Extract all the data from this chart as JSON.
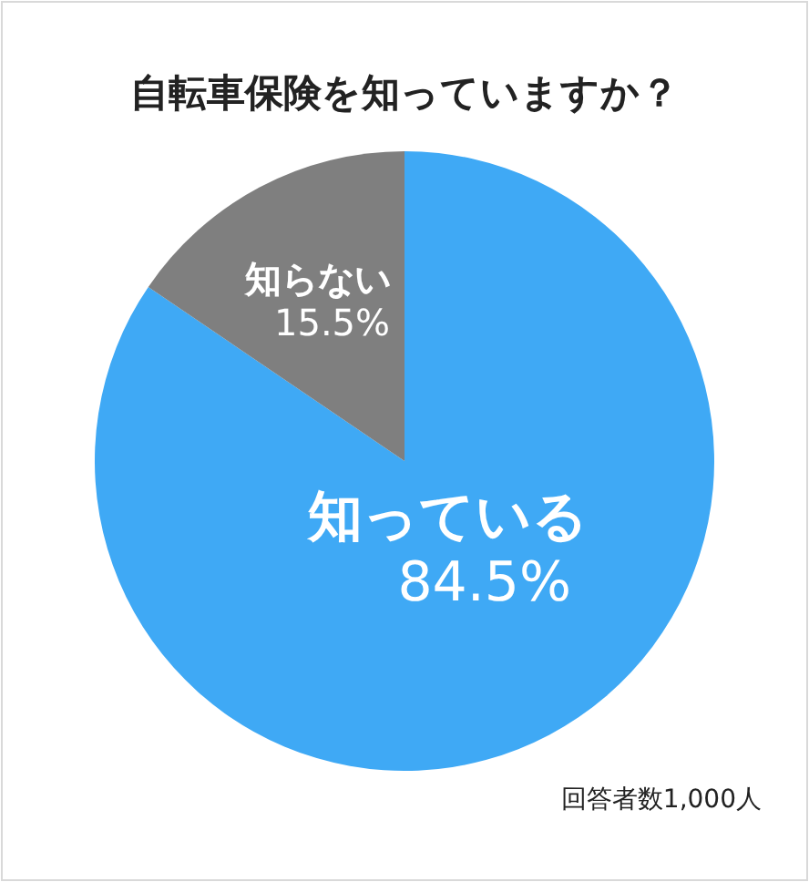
{
  "chart_data": {
    "type": "pie",
    "title": "自転車保険を知っていますか？",
    "categories": [
      "知っている",
      "知らない"
    ],
    "values": [
      84.5,
      15.5
    ],
    "colors": [
      "#3fa9f5",
      "#7f7f7f"
    ],
    "value_labels": [
      "84.5%",
      "15.5%"
    ],
    "annotations": [
      "回答者数1,000人"
    ]
  }
}
